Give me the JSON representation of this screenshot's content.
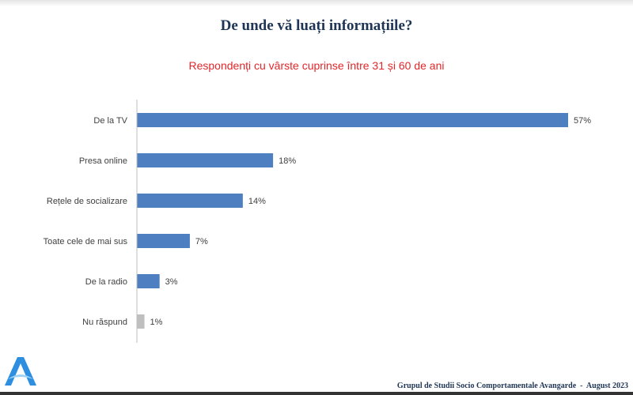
{
  "chart_data": {
    "type": "bar",
    "orientation": "horizontal",
    "title": "De unde vă luați informațiile?",
    "subtitle": "Respondenți cu vârste cuprinse între 31 și 60 de ani",
    "categories": [
      "De la TV",
      "Presa online",
      "Rețele de socializare",
      "Toate cele de mai sus",
      "De la radio",
      "Nu răspund"
    ],
    "values": [
      57,
      18,
      14,
      7,
      3,
      1
    ],
    "value_labels": [
      "57%",
      "18%",
      "14%",
      "7%",
      "3%",
      "1%"
    ],
    "colors": [
      "#4e7fc1",
      "#4e7fc1",
      "#4e7fc1",
      "#4e7fc1",
      "#4e7fc1",
      "#bfbfbf"
    ],
    "xlabel": "",
    "ylabel": "",
    "xlim": [
      0,
      60
    ],
    "grid": false
  },
  "footer": {
    "text": "Grupul de Studii Socio Comportamentale Avangarde",
    "date": "  -  August 2023"
  },
  "logo": {
    "letter": "A"
  }
}
